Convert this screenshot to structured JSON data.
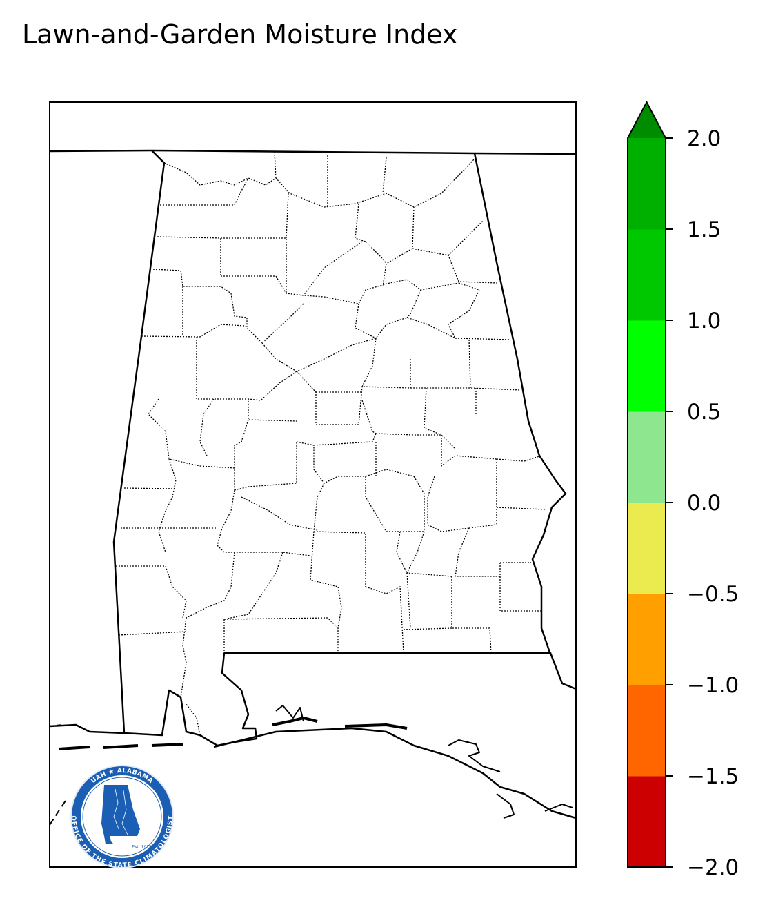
{
  "title": "Lawn-and-Garden Moisture Index",
  "colorbar": {
    "bins": [
      {
        "from": -2.0,
        "to": -1.5,
        "color": "#cc0000"
      },
      {
        "from": -1.5,
        "to": -1.0,
        "color": "#ff6600"
      },
      {
        "from": -1.0,
        "to": -0.5,
        "color": "#ffa000"
      },
      {
        "from": -0.5,
        "to": 0.0,
        "color": "#ebeb50"
      },
      {
        "from": 0.0,
        "to": 0.5,
        "color": "#8ee68e"
      },
      {
        "from": 0.5,
        "to": 1.0,
        "color": "#00ff00"
      },
      {
        "from": 1.0,
        "to": 1.5,
        "color": "#00c800"
      },
      {
        "from": 1.5,
        "to": 2.0,
        "color": "#00b000"
      }
    ],
    "extend_color": "#008c00",
    "ticks": [
      "2.0",
      "1.5",
      "1.0",
      "0.5",
      "0.0",
      "−0.5",
      "−1.0",
      "−1.5",
      "−2.0"
    ]
  },
  "logo": {
    "name": "uah-office-of-the-state-climatologist-seal",
    "top_text": "UAH ★ ALABAMA",
    "bottom_text": "OFFICE OF THE STATE CLIMATOLOGIST",
    "est": "Est. 1978",
    "color": "#1a5fb4"
  }
}
